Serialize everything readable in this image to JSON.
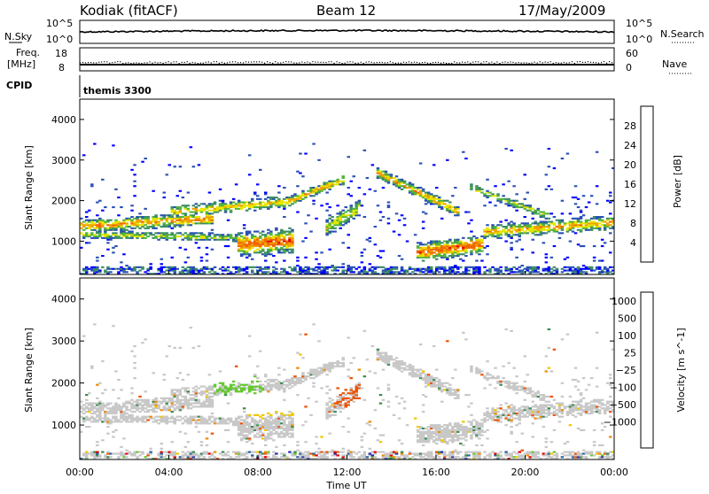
{
  "header": {
    "title": "Kodiak (fitACF)",
    "beam": "Beam 12",
    "date": "17/May/2009"
  },
  "top_panels": {
    "nsky_label": "N.Sky",
    "nsky_ticks": [
      "10^5",
      "10^0"
    ],
    "nsearch_label": "N.Search",
    "nsearch_ticks": [
      "10^5",
      "10^0"
    ],
    "freq_label": "Freq.",
    "freq_unit": "[MHz]",
    "freq_ticks": [
      "18",
      "8"
    ],
    "nave_label": "Nave",
    "nave_ticks": [
      "60",
      "0"
    ],
    "cpid_label": "CPID",
    "cpid_value": "themis 3300"
  },
  "chart_data": [
    {
      "type": "heatmap",
      "panel": "power",
      "ylabel": "Slant Range [km]",
      "ylim": [
        180,
        4500
      ],
      "yticks": [
        "1000",
        "2000",
        "3000",
        "4000"
      ],
      "xlim": [
        0,
        24
      ],
      "colorbar": {
        "label": "Power [dB]",
        "ticks": [
          "4",
          "8",
          "12",
          "16",
          "20",
          "24",
          "28"
        ],
        "colors": [
          "#0000ff",
          "#2850b4",
          "#3c8c64",
          "#50b43c",
          "#e6e600",
          "#f0a000",
          "#f06400",
          "#e60000"
        ]
      }
    },
    {
      "type": "heatmap",
      "panel": "velocity",
      "ylabel": "Slant Range [km]",
      "ylim": [
        180,
        4500
      ],
      "yticks": [
        "1000",
        "2000",
        "3000",
        "4000"
      ],
      "xlim": [
        0,
        24
      ],
      "colorbar": {
        "label": "Velocity [m s^-1]",
        "ticks": [
          "1000",
          "500",
          "100",
          "25",
          "−25",
          "−100",
          "−500",
          "−1000"
        ],
        "colors": [
          "#1e28b4",
          "#2864a0",
          "#3c8c50",
          "#64c832",
          "#c8c8c8",
          "#f0c800",
          "#f08c00",
          "#f05000",
          "#e60000"
        ]
      }
    }
  ],
  "xaxis": {
    "label": "Time UT",
    "ticks": [
      "00:00",
      "04:00",
      "08:00",
      "12:00",
      "16:00",
      "20:00",
      "00:00"
    ]
  },
  "power_scatter_color": "#1e3ca0",
  "velocity_ground_color": "#c8c8c8"
}
